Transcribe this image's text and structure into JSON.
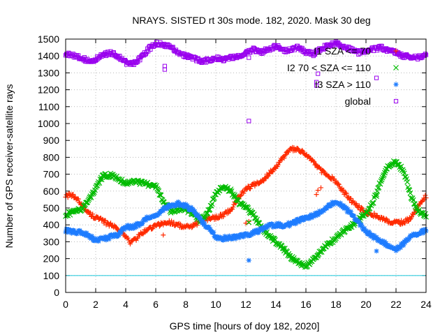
{
  "chart_data": {
    "type": "scatter",
    "title": "NRAYS. SISTED rt 30s mode. 182, 2020. Mask 30 deg",
    "xlabel": "GPS time [hours of doy 182, 2020]",
    "ylabel": "Number of GPS receiver-satellite rays",
    "xlim": [
      0,
      24
    ],
    "ylim": [
      0,
      1500
    ],
    "xticks": [
      "0",
      "2",
      "4",
      "6",
      "8",
      "10",
      "12",
      "14",
      "16",
      "18",
      "20",
      "22",
      "24"
    ],
    "yticks": [
      "0",
      "100",
      "200",
      "300",
      "400",
      "500",
      "600",
      "700",
      "800",
      "900",
      "1000",
      "1100",
      "1200",
      "1300",
      "1400",
      "1500"
    ],
    "grid": true,
    "legend_position": "top-right",
    "threshold_line": {
      "y": 100,
      "color": "#33ccdd"
    },
    "series": [
      {
        "name": "I1 SZA <= 70",
        "legend_label": "I1 SZA <= 70",
        "color": "#ff2a00",
        "marker": "+",
        "x": [
          0,
          0.5,
          1,
          1.5,
          2,
          2.5,
          3,
          3.5,
          4,
          4.3,
          4.7,
          5,
          5.5,
          6,
          6.5,
          7,
          7.5,
          8,
          8.5,
          9,
          9.5,
          10,
          10.5,
          11,
          11.5,
          12,
          12.5,
          13,
          13.5,
          14,
          14.5,
          15,
          15.5,
          16,
          16.5,
          17,
          17.5,
          18,
          18.5,
          19,
          19.5,
          20,
          20.5,
          21,
          21.5,
          22,
          22.5,
          23,
          23.5,
          24
        ],
        "y": [
          575,
          570,
          530,
          470,
          445,
          420,
          400,
          380,
          330,
          295,
          320,
          345,
          375,
          395,
          410,
          415,
          400,
          385,
          395,
          420,
          435,
          445,
          460,
          490,
          560,
          615,
          635,
          650,
          700,
          745,
          800,
          850,
          840,
          820,
          770,
          720,
          695,
          655,
          595,
          545,
          505,
          475,
          460,
          440,
          420,
          415,
          415,
          440,
          520,
          570
        ],
        "outliers": [
          [
            6.5,
            340
          ],
          [
            12.2,
            420
          ],
          [
            16.7,
            580
          ],
          [
            16.8,
            605
          ],
          [
            17.0,
            620
          ],
          [
            12.0,
            410
          ]
        ]
      },
      {
        "name": "I2 70 < SZA <= 110",
        "legend_label": "I2 70 < SZA <= 110",
        "color": "#00bb00",
        "marker": "x",
        "x": [
          0,
          0.5,
          1,
          1.5,
          2,
          2.5,
          3,
          3.5,
          4,
          4.5,
          5,
          5.5,
          6,
          6.5,
          7,
          7.5,
          8,
          8.5,
          9,
          9.5,
          10,
          10.5,
          11,
          11.5,
          12,
          12.5,
          13,
          13.5,
          14,
          14.5,
          15,
          15.5,
          16,
          16.5,
          17,
          17.5,
          18,
          18.5,
          19,
          19.5,
          20,
          20.5,
          21,
          21.5,
          22,
          22.5,
          23,
          23.5,
          24
        ],
        "y": [
          460,
          475,
          490,
          540,
          620,
          690,
          695,
          680,
          640,
          665,
          650,
          640,
          630,
          545,
          480,
          495,
          495,
          460,
          420,
          480,
          590,
          630,
          600,
          535,
          510,
          460,
          385,
          340,
          300,
          260,
          210,
          170,
          155,
          195,
          240,
          290,
          320,
          360,
          390,
          430,
          470,
          540,
          660,
          750,
          775,
          720,
          570,
          480,
          455
        ],
        "outliers": [
          [
            12.2,
            415
          ],
          [
            20.7,
            570
          ]
        ]
      },
      {
        "name": "I3 SZA > 110",
        "legend_label": "I3 SZA > 110",
        "color": "#1e7cff",
        "marker": "*",
        "x": [
          0,
          0.5,
          1,
          1.5,
          2,
          2.5,
          3,
          3.5,
          4,
          4.5,
          5,
          5.5,
          6,
          6.5,
          7,
          7.5,
          8,
          8.5,
          9,
          9.5,
          10,
          10.5,
          11,
          11.5,
          12,
          12.5,
          13,
          13.5,
          14,
          14.5,
          15,
          15.5,
          16,
          16.5,
          17,
          17.5,
          18,
          18.5,
          19,
          19.5,
          20,
          20.5,
          21,
          21.5,
          22,
          22.5,
          23,
          23.5,
          24
        ],
        "y": [
          365,
          360,
          355,
          340,
          310,
          315,
          330,
          345,
          385,
          390,
          405,
          445,
          455,
          490,
          515,
          525,
          510,
          485,
          430,
          380,
          330,
          320,
          325,
          330,
          340,
          355,
          370,
          395,
          400,
          395,
          405,
          425,
          440,
          455,
          475,
          510,
          540,
          505,
          470,
          415,
          360,
          330,
          305,
          275,
          255,
          290,
          330,
          345,
          370
        ],
        "outliers": [
          [
            12.2,
            190
          ],
          [
            20.7,
            245
          ]
        ]
      },
      {
        "name": "global",
        "legend_label": "global",
        "color": "#9900ee",
        "marker": "square",
        "x": [
          0,
          0.5,
          1,
          1.5,
          2,
          2.5,
          3,
          3.5,
          4,
          4.5,
          5,
          5.5,
          6,
          6.5,
          7,
          7.5,
          8,
          8.5,
          9,
          9.5,
          10,
          10.5,
          11,
          11.5,
          12,
          12.5,
          13,
          13.5,
          14,
          14.5,
          15,
          15.5,
          16,
          16.5,
          17,
          17.5,
          18,
          18.5,
          19,
          19.5,
          20,
          20.5,
          21,
          21.5,
          22,
          22.5,
          23,
          23.5,
          24
        ],
        "y": [
          1410,
          1405,
          1390,
          1370,
          1380,
          1405,
          1420,
          1400,
          1360,
          1355,
          1390,
          1440,
          1475,
          1470,
          1455,
          1420,
          1400,
          1390,
          1370,
          1375,
          1390,
          1380,
          1390,
          1400,
          1420,
          1440,
          1420,
          1440,
          1460,
          1430,
          1440,
          1450,
          1425,
          1410,
          1440,
          1465,
          1475,
          1450,
          1440,
          1420,
          1430,
          1440,
          1450,
          1435,
          1420,
          1400,
          1395,
          1390,
          1410
        ],
        "outliers": [
          [
            6.6,
            1320
          ],
          [
            6.6,
            1340
          ],
          [
            12.2,
            1015
          ],
          [
            16.7,
            1225
          ],
          [
            16.7,
            1245
          ],
          [
            16.8,
            1295
          ],
          [
            12.2,
            1390
          ],
          [
            20.7,
            1270
          ]
        ]
      }
    ]
  }
}
